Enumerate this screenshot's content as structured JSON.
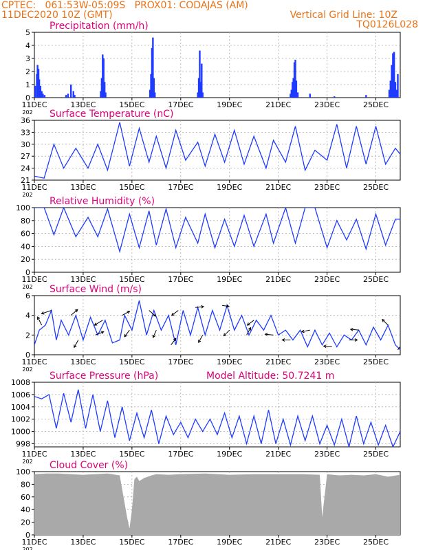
{
  "header": {
    "line1": "CPTEC:   061:53W-05:09S   PROX01: CODAJAS (AM)",
    "line2": "11DEC2020 10Z (GMT)",
    "grid_note": "Vertical Grid Line: 10Z",
    "run_code": "TQ0126L028"
  },
  "colors": {
    "header": "#e8731a",
    "panel_title": "#e0007a",
    "series": "#1f3bff",
    "cloud": "#a9a9a9"
  },
  "x_axis": {
    "tick_labels": [
      "11DEC",
      "13DEC",
      "15DEC",
      "17DEC",
      "19DEC",
      "21DEC",
      "23DEC",
      "25DEC"
    ],
    "year_fragment": "202"
  },
  "chart_data": [
    {
      "type": "bar",
      "title": "Precipitation (mm/h)",
      "ylim": [
        0,
        5
      ],
      "yticks": [
        "0",
        "1",
        "2",
        "3",
        "4",
        "5"
      ],
      "x_days": [
        0.03,
        0.1,
        0.13,
        0.17,
        0.2,
        0.25,
        0.3,
        0.35,
        0.42,
        1.3,
        1.38,
        1.5,
        1.6,
        1.65,
        2.72,
        2.76,
        2.8,
        2.84,
        2.88,
        2.92,
        4.74,
        4.78,
        4.82,
        4.86,
        4.9,
        4.94,
        6.7,
        6.74,
        6.78,
        6.82,
        6.86,
        6.9,
        10.5,
        10.54,
        10.58,
        10.62,
        10.66,
        10.7,
        10.74,
        10.8,
        11.3,
        12.3,
        13.6,
        14.55,
        14.6,
        14.65,
        14.7,
        14.75,
        14.8,
        14.85,
        14.9
      ],
      "values": [
        0.9,
        1.8,
        2.5,
        2.2,
        1.4,
        0.9,
        0.5,
        0.3,
        0.2,
        0.2,
        0.3,
        1.0,
        0.5,
        0.2,
        0.5,
        1.5,
        3.3,
        3.0,
        1.2,
        0.4,
        0.6,
        1.8,
        3.8,
        4.6,
        1.5,
        0.4,
        0.4,
        1.5,
        3.6,
        1.2,
        2.6,
        0.4,
        0.3,
        0.6,
        1.2,
        1.5,
        2.7,
        2.9,
        1.3,
        0.4,
        0.3,
        0.1,
        0.2,
        0.6,
        1.3,
        2.5,
        3.4,
        3.5,
        1.2,
        0.6,
        1.8
      ]
    },
    {
      "type": "line",
      "title": "Surface Temperature (nC)",
      "ylim": [
        21,
        36
      ],
      "yticks": [
        "21",
        "24",
        "27",
        "30",
        "33",
        "36"
      ],
      "x_days": [
        0,
        0.4,
        0.8,
        1.2,
        1.7,
        2.2,
        2.6,
        3.0,
        3.5,
        3.9,
        4.3,
        4.7,
        5.0,
        5.4,
        5.8,
        6.2,
        6.7,
        7.0,
        7.4,
        7.8,
        8.2,
        8.6,
        9.0,
        9.5,
        9.8,
        10.3,
        10.7,
        11.1,
        11.5,
        12.0,
        12.4,
        12.8,
        13.2,
        13.6,
        14.0,
        14.4,
        14.8,
        15.0
      ],
      "values": [
        22.0,
        21.5,
        30.0,
        24.0,
        29.0,
        24.0,
        30.0,
        23.5,
        35.5,
        24.5,
        34.0,
        25.5,
        32.0,
        24.0,
        33.5,
        26.0,
        30.5,
        24.5,
        32.5,
        25.5,
        33.5,
        25.0,
        32.0,
        24.0,
        31.0,
        25.5,
        34.5,
        23.5,
        28.5,
        26.0,
        35.0,
        24.0,
        34.5,
        25.0,
        34.5,
        25.0,
        29.0,
        27.5
      ]
    },
    {
      "type": "line",
      "title": "Relative Humidity (%)",
      "ylim": [
        0,
        100
      ],
      "yticks": [
        "0",
        "20",
        "40",
        "60",
        "80",
        "100"
      ],
      "x_days": [
        0,
        0.4,
        0.8,
        1.2,
        1.7,
        2.2,
        2.6,
        3.0,
        3.5,
        3.9,
        4.3,
        4.7,
        5.0,
        5.4,
        5.8,
        6.2,
        6.7,
        7.0,
        7.4,
        7.8,
        8.2,
        8.6,
        9.0,
        9.5,
        9.8,
        10.3,
        10.7,
        11.1,
        11.5,
        12.0,
        12.4,
        12.8,
        13.2,
        13.6,
        14.0,
        14.4,
        14.8,
        15.0
      ],
      "values": [
        100,
        100,
        58,
        100,
        55,
        85,
        55,
        98,
        32,
        90,
        38,
        95,
        42,
        98,
        38,
        85,
        45,
        90,
        38,
        82,
        40,
        88,
        40,
        90,
        45,
        100,
        45,
        100,
        100,
        38,
        80,
        50,
        82,
        36,
        90,
        42,
        82,
        82
      ]
    },
    {
      "type": "line",
      "title": "Surface Wind (m/s)",
      "ylim": [
        0,
        6
      ],
      "yticks": [
        "0",
        "2",
        "4",
        "6"
      ],
      "x_days": [
        0,
        0.2,
        0.45,
        0.7,
        0.9,
        1.1,
        1.4,
        1.7,
        2.0,
        2.3,
        2.6,
        2.9,
        3.2,
        3.5,
        3.7,
        4.0,
        4.3,
        4.6,
        4.9,
        5.2,
        5.5,
        5.8,
        6.1,
        6.4,
        6.7,
        7.0,
        7.3,
        7.6,
        7.9,
        8.2,
        8.5,
        8.8,
        9.1,
        9.4,
        9.7,
        10.0,
        10.3,
        10.6,
        10.9,
        11.2,
        11.5,
        11.8,
        12.1,
        12.4,
        12.7,
        13.0,
        13.3,
        13.6,
        13.9,
        14.2,
        14.5,
        14.8,
        15.0
      ],
      "values": [
        1.0,
        2.5,
        3.0,
        4.5,
        1.5,
        3.5,
        2.0,
        4.0,
        1.5,
        3.8,
        2.0,
        3.5,
        1.2,
        1.5,
        4.0,
        2.5,
        5.5,
        2.0,
        4.5,
        2.5,
        4.0,
        1.0,
        4.5,
        2.0,
        4.8,
        2.0,
        4.5,
        2.5,
        5.0,
        2.5,
        4.0,
        2.0,
        3.5,
        2.5,
        4.0,
        2.0,
        2.5,
        1.5,
        2.5,
        0.8,
        2.5,
        1.0,
        2.2,
        0.8,
        2.0,
        1.5,
        2.5,
        1.0,
        2.8,
        1.5,
        3.0,
        1.0,
        0.5
      ],
      "vectors": [
        {
          "x": 0.3,
          "u": -0.5,
          "v": 1.0
        },
        {
          "x": 0.7,
          "u": -1.2,
          "v": -0.4
        },
        {
          "x": 1.5,
          "u": 0.8,
          "v": 0.7
        },
        {
          "x": 1.8,
          "u": -0.5,
          "v": -0.9
        },
        {
          "x": 2.5,
          "u": 1.0,
          "v": 0.4
        },
        {
          "x": 2.8,
          "u": -1.0,
          "v": -0.6
        },
        {
          "x": 3.6,
          "u": 0.9,
          "v": 0.5
        },
        {
          "x": 3.9,
          "u": -0.6,
          "v": -0.8
        },
        {
          "x": 4.7,
          "u": 0.8,
          "v": -0.7
        },
        {
          "x": 5.0,
          "u": -0.4,
          "v": -0.9
        },
        {
          "x": 5.6,
          "u": 0.6,
          "v": 0.8
        },
        {
          "x": 5.9,
          "u": -0.8,
          "v": -0.6
        },
        {
          "x": 6.6,
          "u": 1.0,
          "v": 0.1
        },
        {
          "x": 6.9,
          "u": -0.5,
          "v": -0.9
        },
        {
          "x": 7.7,
          "u": 0.8,
          "v": -0.1
        },
        {
          "x": 8.0,
          "u": -0.7,
          "v": -0.7
        },
        {
          "x": 8.7,
          "u": 0.5,
          "v": 0.9
        },
        {
          "x": 9.0,
          "u": -0.8,
          "v": -0.6
        },
        {
          "x": 9.8,
          "u": -1.0,
          "v": 0.1
        },
        {
          "x": 10.5,
          "u": -1.0,
          "v": 0.0
        },
        {
          "x": 11.3,
          "u": -1.0,
          "v": -0.2
        },
        {
          "x": 12.2,
          "u": -1.0,
          "v": 0.1
        },
        {
          "x": 12.9,
          "u": 1.0,
          "v": 0.0
        },
        {
          "x": 13.3,
          "u": -1.0,
          "v": 0.1
        },
        {
          "x": 14.5,
          "u": -0.7,
          "v": 0.7
        },
        {
          "x": 14.9,
          "u": 0.6,
          "v": 0.8
        }
      ]
    },
    {
      "type": "line",
      "title": "Surface Pressure (hPa)",
      "annotation": "Model Altitude: 50.7241 m",
      "ylim": [
        997.5,
        1008
      ],
      "yticks": [
        "998",
        "1000",
        "1002",
        "1004",
        "1006",
        "1008"
      ],
      "x_days": [
        0,
        0.3,
        0.6,
        0.9,
        1.2,
        1.5,
        1.8,
        2.1,
        2.4,
        2.7,
        3.0,
        3.3,
        3.6,
        3.9,
        4.2,
        4.5,
        4.8,
        5.1,
        5.4,
        5.7,
        6.0,
        6.3,
        6.6,
        6.9,
        7.2,
        7.5,
        7.8,
        8.1,
        8.4,
        8.7,
        9.0,
        9.3,
        9.6,
        9.9,
        10.2,
        10.5,
        10.8,
        11.1,
        11.4,
        11.7,
        12.0,
        12.3,
        12.6,
        12.9,
        13.2,
        13.5,
        13.8,
        14.1,
        14.4,
        14.7,
        15.0
      ],
      "values": [
        1005.7,
        1005.3,
        1006.0,
        1000.5,
        1006.2,
        1001.5,
        1006.8,
        1000.5,
        1006.0,
        1000.0,
        1005.0,
        999.0,
        1004.0,
        998.5,
        1003.0,
        999.0,
        1003.5,
        998.0,
        1002.5,
        999.5,
        1001.5,
        999.0,
        1002.0,
        1000.0,
        1002.0,
        999.5,
        1003.0,
        999.0,
        1002.5,
        998.0,
        1002.5,
        998.0,
        1003.5,
        998.0,
        1002.0,
        997.8,
        1002.5,
        998.5,
        1002.5,
        998.0,
        1001.0,
        997.8,
        1002.0,
        997.5,
        1002.5,
        998.0,
        1001.5,
        997.8,
        1001.0,
        997.5,
        1000.0
      ]
    },
    {
      "type": "area",
      "title": "Cloud Cover (%)",
      "ylim": [
        0,
        100
      ],
      "yticks": [
        "0",
        "20",
        "40",
        "60",
        "80",
        "100"
      ],
      "x_days": [
        0,
        0.5,
        1.0,
        1.5,
        2.0,
        2.5,
        3.0,
        3.5,
        3.8,
        3.9,
        4.0,
        4.1,
        4.2,
        4.3,
        4.5,
        4.8,
        5.0,
        5.5,
        6.0,
        7.0,
        8.0,
        9.0,
        10.0,
        11.0,
        11.7,
        11.8,
        12.0,
        12.5,
        13.0,
        13.5,
        14.0,
        14.5,
        15.0
      ],
      "values": [
        96,
        97,
        97,
        96,
        95,
        96,
        97,
        94,
        28,
        10,
        40,
        88,
        92,
        85,
        90,
        94,
        96,
        95,
        96,
        97,
        95,
        96,
        96,
        96,
        95,
        28,
        96,
        94,
        95,
        94,
        96,
        92,
        95
      ]
    }
  ]
}
